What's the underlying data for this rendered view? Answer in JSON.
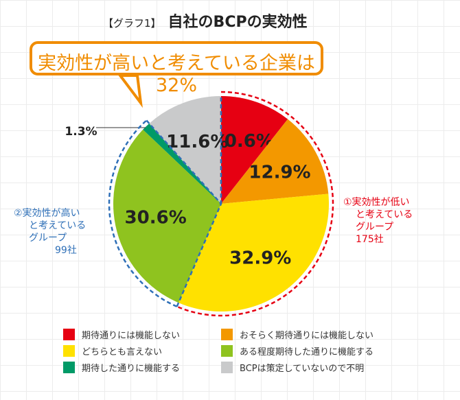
{
  "title": {
    "tag": "【グラフ1】",
    "text": "自社のBCPの実効性"
  },
  "callout": "実効性が高いと考えている企業は32%",
  "groups": {
    "low": {
      "label": "①実効性が低いと考えているグループ",
      "line1": "①実効性が低い",
      "line2": "と考えている",
      "line3": "グループ",
      "count": "175社",
      "color": "#e60012"
    },
    "high": {
      "label": "②実効性が高いと考えているグループ",
      "line1": "②実効性が高い",
      "line2": "と考えている",
      "line3": "グループ",
      "count": "99社",
      "color": "#2e6fb7"
    }
  },
  "chart_data": {
    "type": "pie",
    "title": "自社のBCPの実効性",
    "start": "top",
    "direction": "clockwise",
    "slices": [
      {
        "label": "期待通りには機能しない",
        "value": 10.6,
        "text": "10.6%",
        "color": "#e60012"
      },
      {
        "label": "おそらく期待通りには機能しない",
        "value": 12.9,
        "text": "12.9%",
        "color": "#f39800"
      },
      {
        "label": "どちらとも言えない",
        "value": 32.9,
        "text": "32.9%",
        "color": "#ffe100"
      },
      {
        "label": "ある程度期待した通りに機能する",
        "value": 30.6,
        "text": "30.6%",
        "color": "#8fc31f"
      },
      {
        "label": "期待した通りに機能する",
        "value": 1.3,
        "text": "1.3%",
        "color": "#009a67"
      },
      {
        "label": "BCPは策定していないので不明",
        "value": 11.6,
        "text": "11.6%",
        "color": "#c9cacb"
      }
    ],
    "legend_position": "bottom"
  }
}
